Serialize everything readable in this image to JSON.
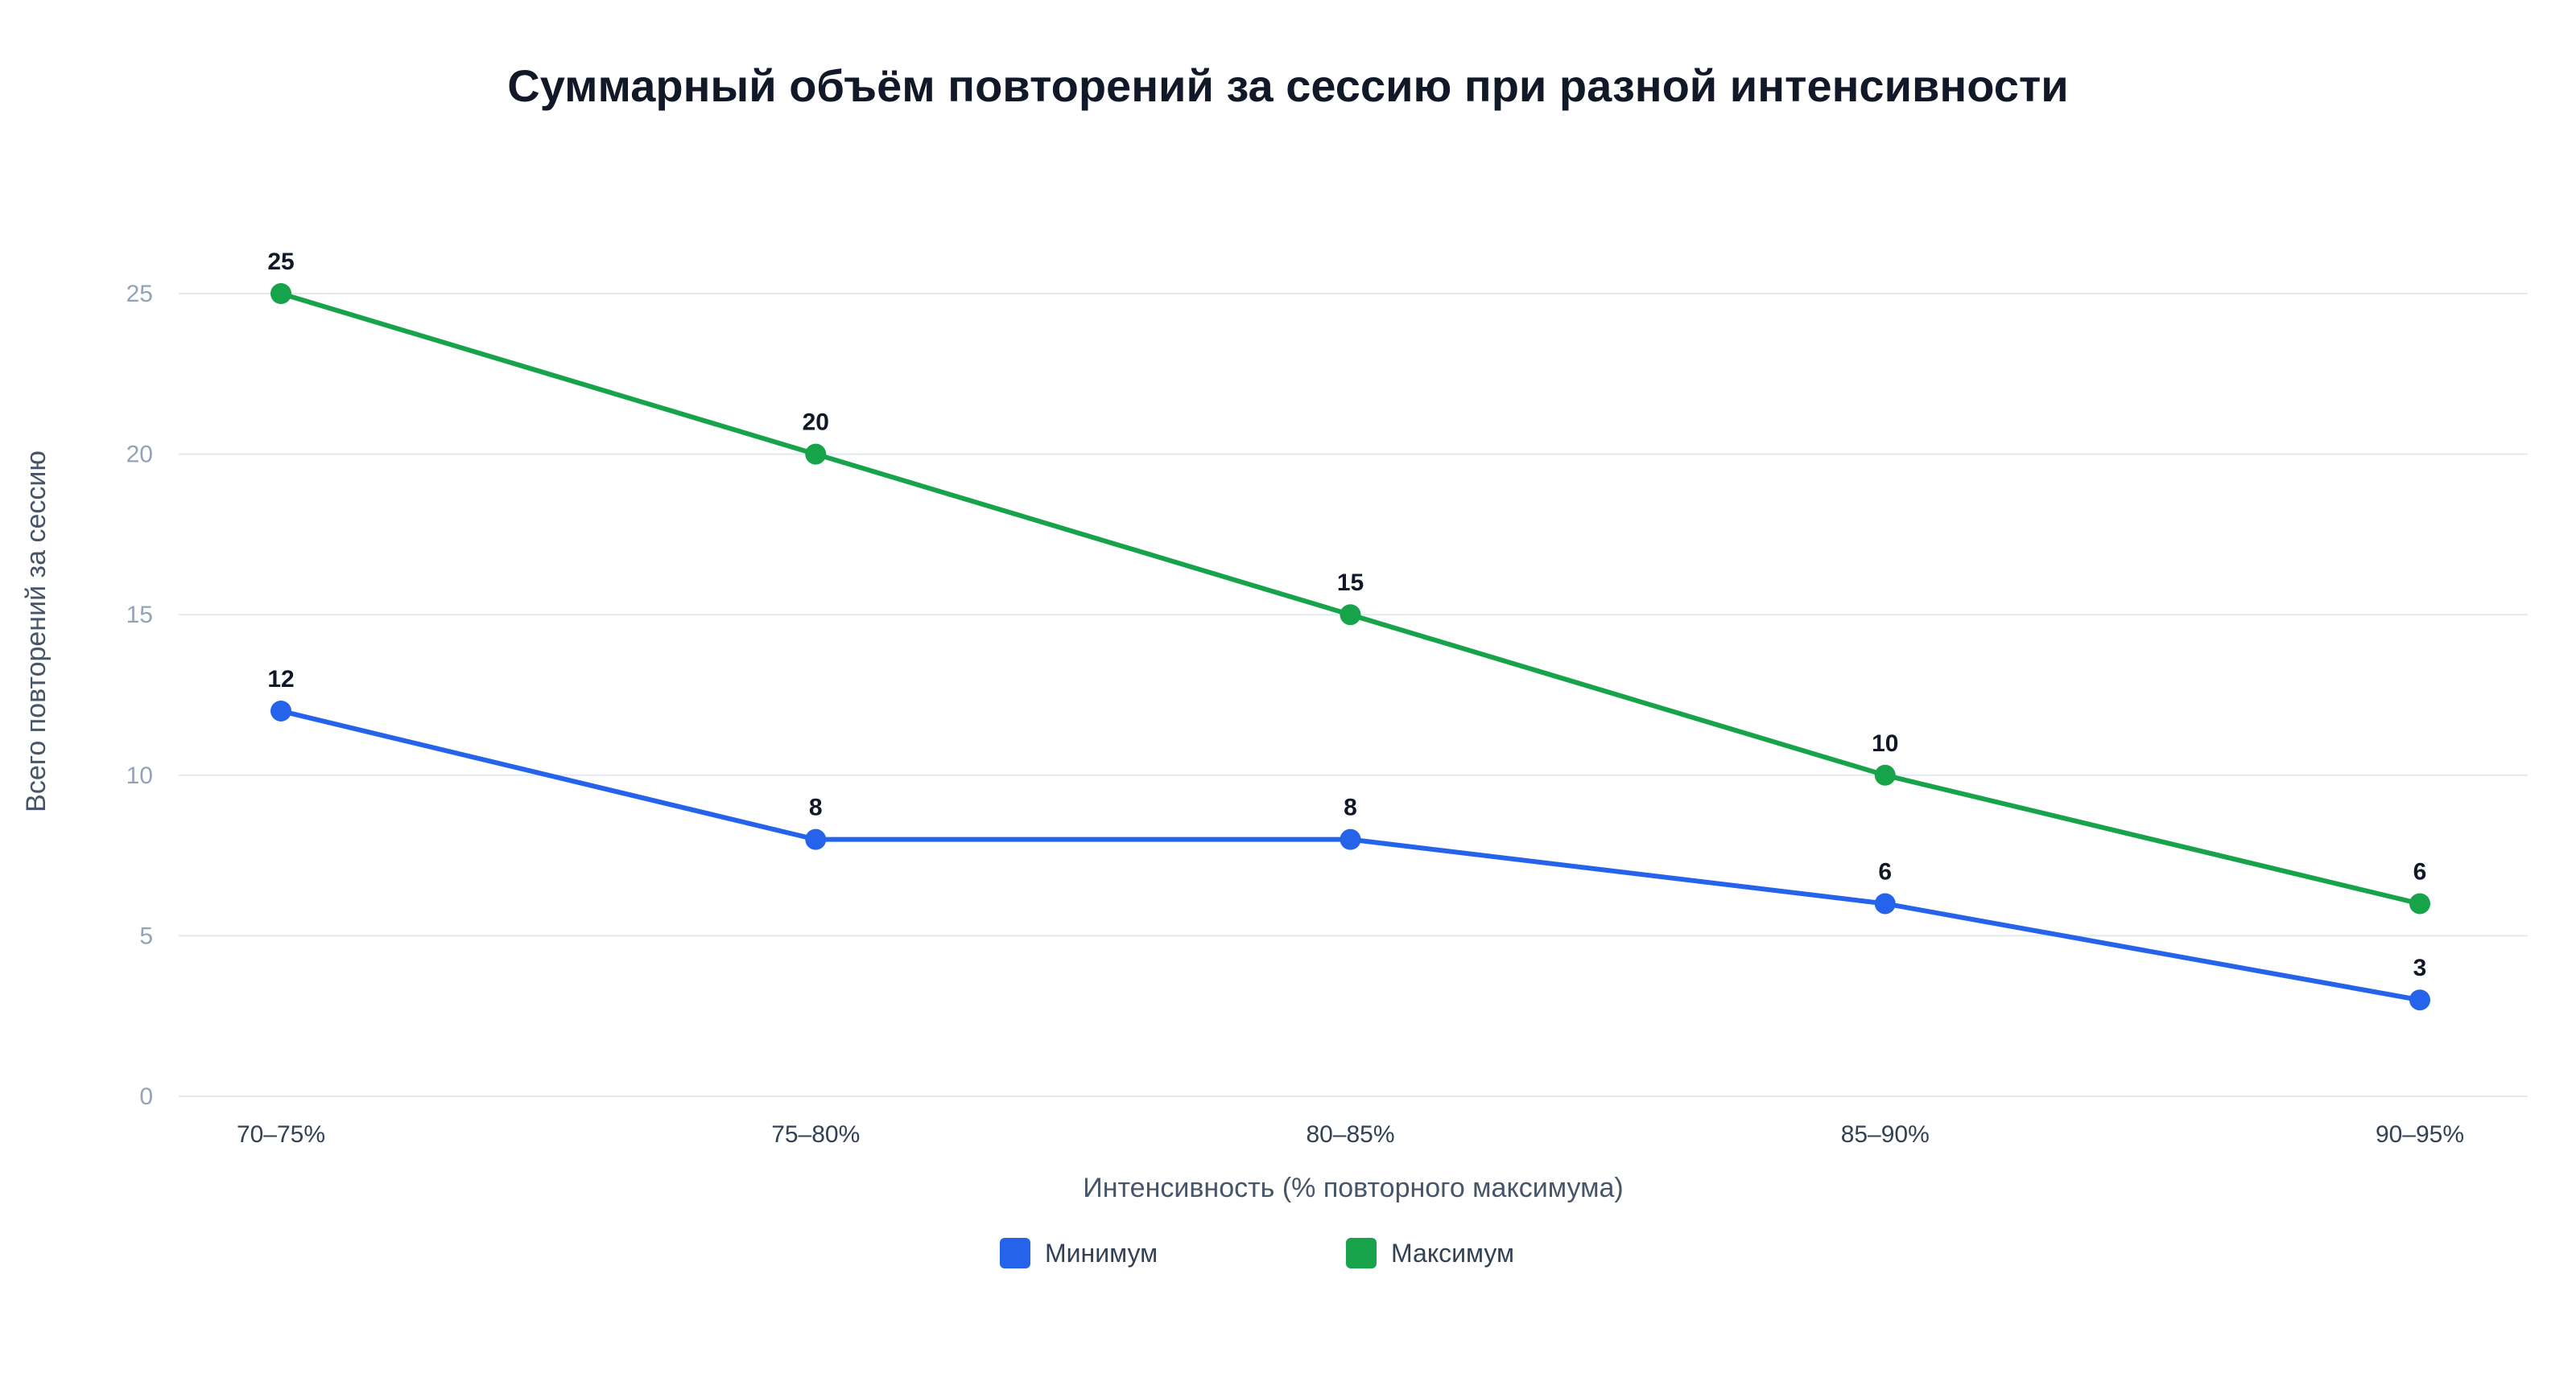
{
  "chart_data": {
    "type": "line",
    "title": "Суммарный объём повторений за сессию при разной интенсивности",
    "xlabel": "Интенсивность (% повторного максимума)",
    "ylabel": "Всего повторений за сессию",
    "categories": [
      "70–75%",
      "75–80%",
      "80–85%",
      "85–90%",
      "90–95%"
    ],
    "ylim": [
      0,
      25
    ],
    "yticks": [
      0,
      5,
      10,
      15,
      20,
      25
    ],
    "grid": true,
    "legend_position": "bottom",
    "series": [
      {
        "name": "Минимум",
        "color": "#2563eb",
        "values": [
          12,
          8,
          8,
          6,
          3
        ]
      },
      {
        "name": "Максимум",
        "color": "#16a34a",
        "values": [
          25,
          20,
          15,
          10,
          6
        ]
      }
    ]
  }
}
